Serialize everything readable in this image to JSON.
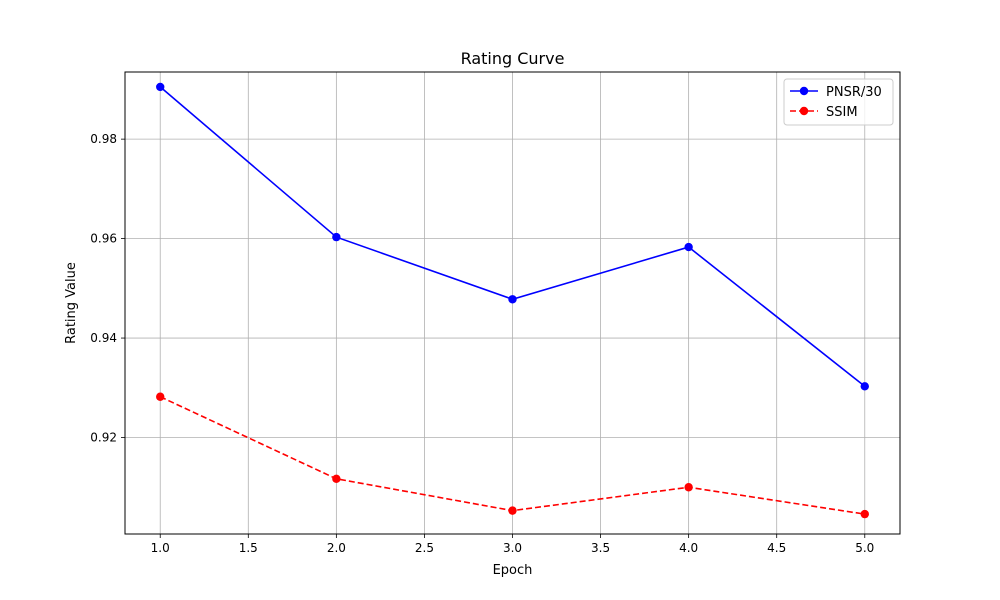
{
  "chart_data": {
    "type": "line",
    "title": "Rating Curve",
    "xlabel": "Epoch",
    "ylabel": "Rating Value",
    "x": [
      1.0,
      2.0,
      3.0,
      4.0,
      5.0
    ],
    "xlim": [
      0.8,
      5.2
    ],
    "ylim": [
      0.9006,
      0.9935
    ],
    "xticks": [
      1.0,
      1.5,
      2.0,
      2.5,
      3.0,
      3.5,
      4.0,
      4.5,
      5.0
    ],
    "xtick_labels": [
      "1.0",
      "1.5",
      "2.0",
      "2.5",
      "3.0",
      "3.5",
      "4.0",
      "4.5",
      "5.0"
    ],
    "yticks": [
      0.92,
      0.94,
      0.96,
      0.98
    ],
    "ytick_labels": [
      "0.92",
      "0.94",
      "0.96",
      "0.98"
    ],
    "grid": true,
    "legend_position": "top-right",
    "series": [
      {
        "name": "PNSR/30",
        "values": [
          0.9905,
          0.9603,
          0.9478,
          0.9583,
          0.9303
        ],
        "color": "#0000ff",
        "linestyle": "solid",
        "marker": "circle"
      },
      {
        "name": "SSIM",
        "values": [
          0.9282,
          0.9117,
          0.9053,
          0.91,
          0.9046
        ],
        "color": "#ff0000",
        "linestyle": "dashed",
        "marker": "circle"
      }
    ]
  }
}
